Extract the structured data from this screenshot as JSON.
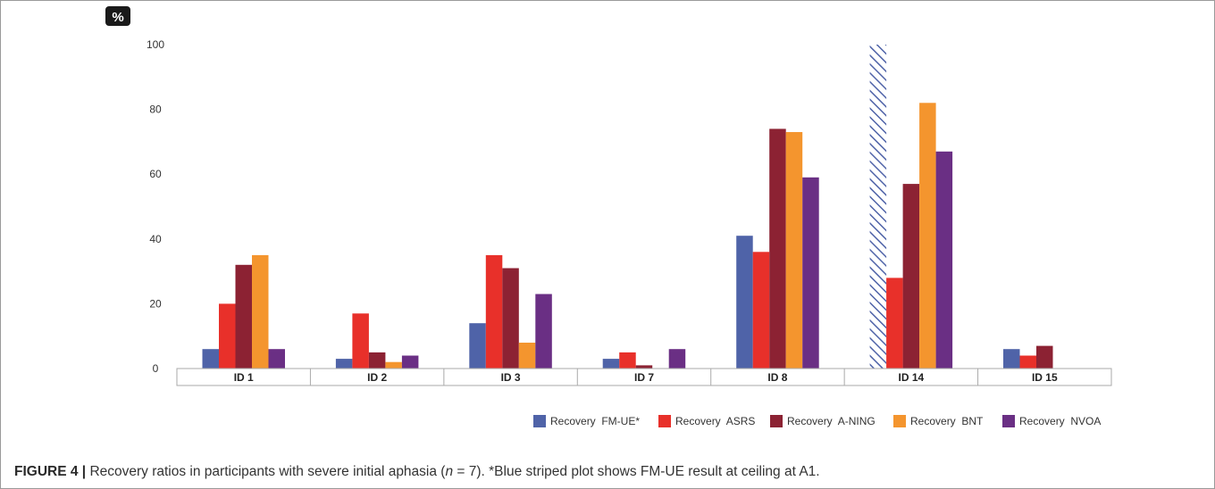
{
  "caption": {
    "label": "FIGURE 4 |",
    "text_before_n": " Recovery ratios in participants with severe initial aphasia (",
    "n_symbol": "n",
    "text_after_n": " = 7). *Blue striped plot shows FM-UE result at ceiling at A1."
  },
  "chart_data": {
    "type": "bar",
    "unit_label": "%",
    "ylim": [
      0,
      100
    ],
    "yticks": [
      0,
      20,
      40,
      60,
      80,
      100
    ],
    "grid": false,
    "legend_position": "bottom-right",
    "categories": [
      "ID 1",
      "ID 2",
      "ID 3",
      "ID 7",
      "ID 8",
      "ID 14",
      "ID 15"
    ],
    "series": [
      {
        "name": "Recovery  FM-UE*",
        "color": "#4f63a8",
        "values": [
          6,
          3,
          14,
          3,
          41,
          100,
          6
        ],
        "striped": [
          false,
          false,
          false,
          false,
          false,
          true,
          false
        ]
      },
      {
        "name": "Recovery  ASRS",
        "color": "#e8302a",
        "values": [
          20,
          17,
          35,
          5,
          36,
          28,
          4
        ]
      },
      {
        "name": "Recovery  A-NING",
        "color": "#8c2233",
        "values": [
          32,
          5,
          31,
          1,
          74,
          57,
          7
        ]
      },
      {
        "name": "Recovery  BNT",
        "color": "#f4952e",
        "values": [
          35,
          2,
          8,
          0,
          73,
          82,
          null
        ]
      },
      {
        "name": "Recovery  NVOA",
        "color": "#6a2f84",
        "values": [
          6,
          4,
          23,
          6,
          59,
          67,
          null
        ]
      }
    ]
  }
}
